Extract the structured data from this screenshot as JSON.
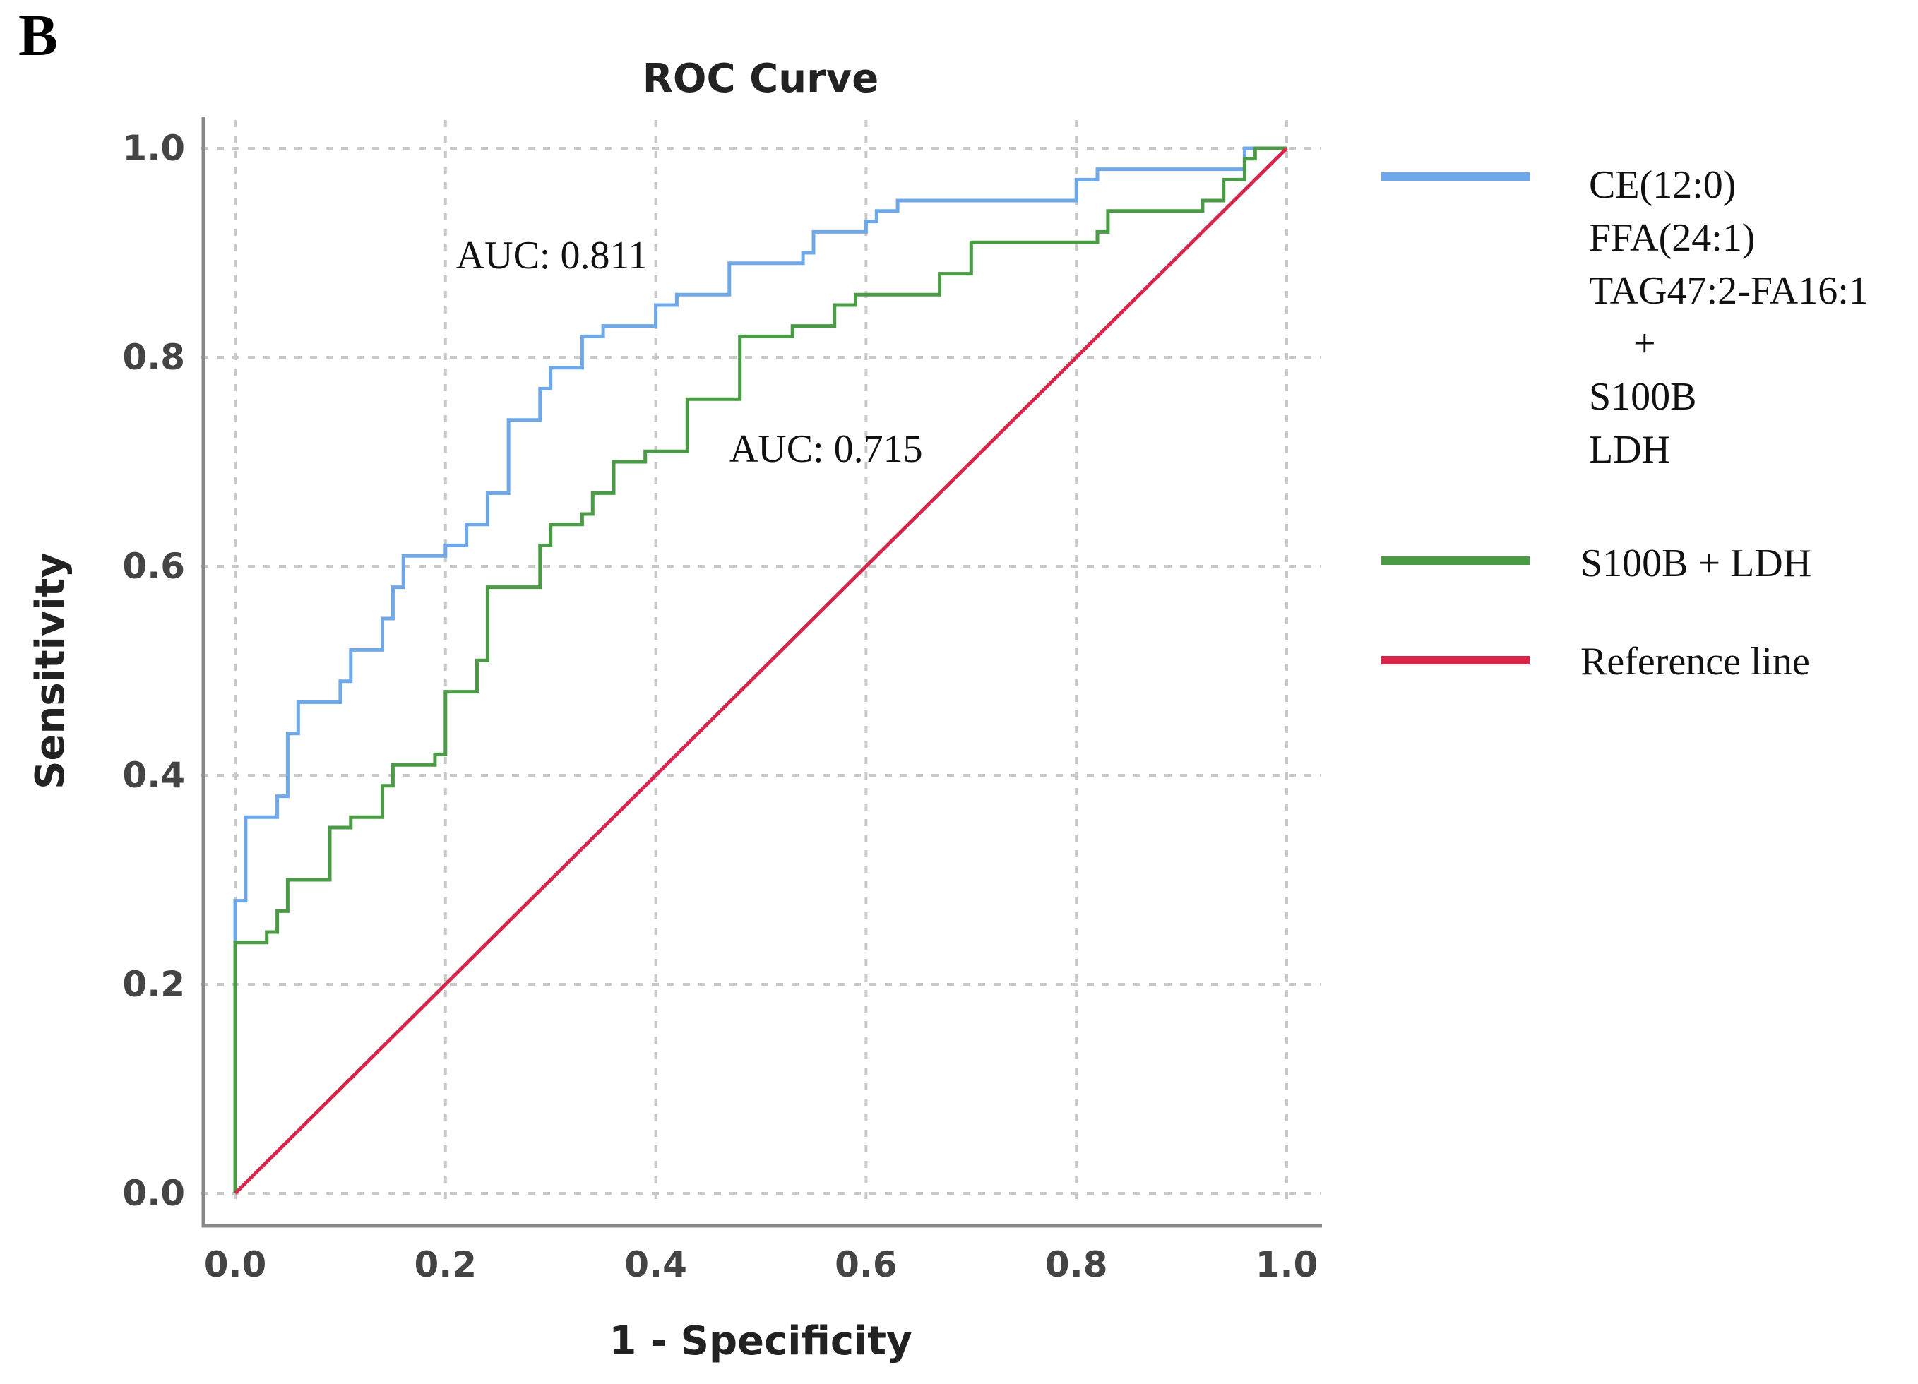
{
  "panel_label": "B",
  "chart_data": {
    "type": "line",
    "title": "ROC Curve",
    "xlabel": "1 - Specificity",
    "ylabel": "Sensitivity",
    "xlim": [
      0,
      1
    ],
    "ylim": [
      0,
      1
    ],
    "grid": true,
    "xticks": [
      "0.0",
      "0.2",
      "0.4",
      "0.6",
      "0.8",
      "1.0"
    ],
    "yticks": [
      "0.0",
      "0.2",
      "0.4",
      "0.6",
      "0.8",
      "1.0"
    ],
    "series": [
      {
        "name": "CE(12:0) FFA(24:1) TAG47:2-FA16:1 + S100B LDH",
        "color": "#6fa8e8",
        "auc_label": "AUC: 0.811",
        "points": [
          [
            0.0,
            0.0
          ],
          [
            0.0,
            0.28
          ],
          [
            0.01,
            0.28
          ],
          [
            0.01,
            0.36
          ],
          [
            0.04,
            0.36
          ],
          [
            0.04,
            0.38
          ],
          [
            0.05,
            0.38
          ],
          [
            0.05,
            0.44
          ],
          [
            0.06,
            0.44
          ],
          [
            0.06,
            0.47
          ],
          [
            0.1,
            0.47
          ],
          [
            0.1,
            0.49
          ],
          [
            0.11,
            0.49
          ],
          [
            0.11,
            0.52
          ],
          [
            0.14,
            0.52
          ],
          [
            0.14,
            0.55
          ],
          [
            0.15,
            0.55
          ],
          [
            0.15,
            0.58
          ],
          [
            0.16,
            0.58
          ],
          [
            0.16,
            0.61
          ],
          [
            0.2,
            0.61
          ],
          [
            0.2,
            0.62
          ],
          [
            0.22,
            0.62
          ],
          [
            0.22,
            0.64
          ],
          [
            0.24,
            0.64
          ],
          [
            0.24,
            0.67
          ],
          [
            0.26,
            0.67
          ],
          [
            0.26,
            0.74
          ],
          [
            0.29,
            0.74
          ],
          [
            0.29,
            0.77
          ],
          [
            0.3,
            0.77
          ],
          [
            0.3,
            0.79
          ],
          [
            0.33,
            0.79
          ],
          [
            0.33,
            0.82
          ],
          [
            0.35,
            0.82
          ],
          [
            0.35,
            0.83
          ],
          [
            0.4,
            0.83
          ],
          [
            0.4,
            0.85
          ],
          [
            0.42,
            0.85
          ],
          [
            0.42,
            0.86
          ],
          [
            0.47,
            0.86
          ],
          [
            0.47,
            0.89
          ],
          [
            0.54,
            0.89
          ],
          [
            0.54,
            0.9
          ],
          [
            0.55,
            0.9
          ],
          [
            0.55,
            0.92
          ],
          [
            0.6,
            0.92
          ],
          [
            0.6,
            0.93
          ],
          [
            0.61,
            0.93
          ],
          [
            0.61,
            0.94
          ],
          [
            0.63,
            0.94
          ],
          [
            0.63,
            0.95
          ],
          [
            0.8,
            0.95
          ],
          [
            0.8,
            0.97
          ],
          [
            0.82,
            0.97
          ],
          [
            0.82,
            0.98
          ],
          [
            0.96,
            0.98
          ],
          [
            0.96,
            1.0
          ],
          [
            1.0,
            1.0
          ]
        ]
      },
      {
        "name": "S100B + LDH",
        "color": "#4a9a46",
        "auc_label": "AUC: 0.715",
        "points": [
          [
            0.0,
            0.0
          ],
          [
            0.0,
            0.24
          ],
          [
            0.03,
            0.24
          ],
          [
            0.03,
            0.25
          ],
          [
            0.04,
            0.25
          ],
          [
            0.04,
            0.27
          ],
          [
            0.05,
            0.27
          ],
          [
            0.05,
            0.3
          ],
          [
            0.09,
            0.3
          ],
          [
            0.09,
            0.35
          ],
          [
            0.11,
            0.35
          ],
          [
            0.11,
            0.36
          ],
          [
            0.14,
            0.36
          ],
          [
            0.14,
            0.39
          ],
          [
            0.15,
            0.39
          ],
          [
            0.15,
            0.41
          ],
          [
            0.19,
            0.41
          ],
          [
            0.19,
            0.42
          ],
          [
            0.2,
            0.42
          ],
          [
            0.2,
            0.48
          ],
          [
            0.23,
            0.48
          ],
          [
            0.23,
            0.51
          ],
          [
            0.24,
            0.51
          ],
          [
            0.24,
            0.58
          ],
          [
            0.29,
            0.58
          ],
          [
            0.29,
            0.62
          ],
          [
            0.3,
            0.62
          ],
          [
            0.3,
            0.64
          ],
          [
            0.33,
            0.64
          ],
          [
            0.33,
            0.65
          ],
          [
            0.34,
            0.65
          ],
          [
            0.34,
            0.67
          ],
          [
            0.36,
            0.67
          ],
          [
            0.36,
            0.7
          ],
          [
            0.39,
            0.7
          ],
          [
            0.39,
            0.71
          ],
          [
            0.43,
            0.71
          ],
          [
            0.43,
            0.76
          ],
          [
            0.48,
            0.76
          ],
          [
            0.48,
            0.82
          ],
          [
            0.53,
            0.82
          ],
          [
            0.53,
            0.83
          ],
          [
            0.57,
            0.83
          ],
          [
            0.57,
            0.85
          ],
          [
            0.59,
            0.85
          ],
          [
            0.59,
            0.86
          ],
          [
            0.67,
            0.86
          ],
          [
            0.67,
            0.88
          ],
          [
            0.7,
            0.88
          ],
          [
            0.7,
            0.91
          ],
          [
            0.82,
            0.91
          ],
          [
            0.82,
            0.92
          ],
          [
            0.83,
            0.92
          ],
          [
            0.83,
            0.94
          ],
          [
            0.92,
            0.94
          ],
          [
            0.92,
            0.95
          ],
          [
            0.94,
            0.95
          ],
          [
            0.94,
            0.97
          ],
          [
            0.96,
            0.97
          ],
          [
            0.96,
            0.99
          ],
          [
            0.97,
            0.99
          ],
          [
            0.97,
            1.0
          ],
          [
            1.0,
            1.0
          ]
        ]
      },
      {
        "name": "Reference line",
        "color": "#d8264b",
        "points": [
          [
            0.0,
            0.0
          ],
          [
            1.0,
            1.0
          ]
        ]
      }
    ],
    "annotations": [
      {
        "text": "AUC: 0.811",
        "x": 0.21,
        "y": 0.885
      },
      {
        "text": "AUC: 0.715",
        "x": 0.47,
        "y": 0.7
      }
    ]
  },
  "legend": {
    "entries": [
      {
        "color": "#6fa8e8",
        "lines": [
          "CE(12:0)",
          "FFA(24:1)",
          "TAG47:2-FA16:1",
          "+",
          "S100B",
          "LDH"
        ]
      },
      {
        "color": "#4a9a46",
        "lines": [
          "S100B + LDH"
        ]
      },
      {
        "color": "#d8264b",
        "lines": [
          "Reference line"
        ]
      }
    ]
  }
}
